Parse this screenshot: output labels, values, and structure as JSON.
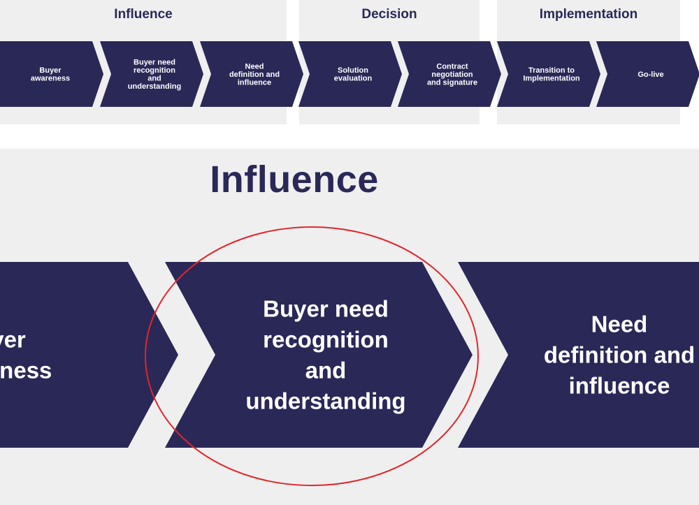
{
  "overview": {
    "phases": [
      {
        "title": "Influence"
      },
      {
        "title": "Decision"
      },
      {
        "title": "Implementation"
      }
    ],
    "steps": [
      {
        "lines": [
          "Buyer",
          "awareness"
        ]
      },
      {
        "lines": [
          "Buyer need",
          "recognition",
          "and",
          "understanding"
        ]
      },
      {
        "lines": [
          "Need",
          "definition and",
          "influence"
        ]
      },
      {
        "lines": [
          "Solution",
          "evaluation"
        ]
      },
      {
        "lines": [
          "Contract",
          "negotiation",
          "and signature"
        ]
      },
      {
        "lines": [
          "Transition to",
          "Implementation"
        ]
      },
      {
        "lines": [
          "Go-live"
        ]
      }
    ]
  },
  "detail": {
    "title": "Influence",
    "steps": [
      {
        "lines": [
          "Buyer",
          "awareness"
        ]
      },
      {
        "lines": [
          "Buyer need",
          "recognition",
          "and",
          "understanding"
        ],
        "highlighted": true
      },
      {
        "lines": [
          "Need",
          "definition and",
          "influence"
        ]
      }
    ]
  },
  "colors": {
    "chevron": "#2a2857",
    "panel": "#efefef",
    "highlight_ring": "#e0262b",
    "text_light": "#ffffff"
  }
}
